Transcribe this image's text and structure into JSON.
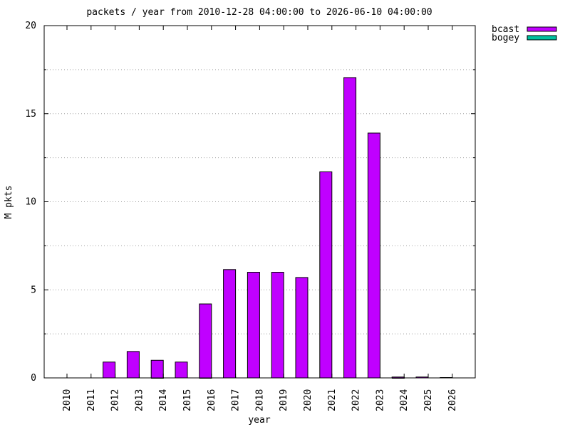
{
  "chart_data": {
    "type": "bar",
    "title": "packets / year   from 2010-12-28 04:00:00 to 2026-06-10 04:00:00",
    "xlabel": "year",
    "ylabel": "M pkts",
    "categories": [
      "2010",
      "2011",
      "2012",
      "2013",
      "2014",
      "2015",
      "2016",
      "2017",
      "2018",
      "2019",
      "2020",
      "2021",
      "2022",
      "2023",
      "2024",
      "2025",
      "2026"
    ],
    "ylim": [
      0,
      20
    ],
    "yticks": [
      0,
      5,
      10,
      15,
      20
    ],
    "grid": true,
    "legend_position": "top-right, outside plot",
    "series": [
      {
        "name": "bcast",
        "color": "#c000ff",
        "values": [
          0,
          0,
          0.9,
          1.5,
          1.0,
          0.9,
          4.2,
          6.15,
          6.0,
          6.0,
          5.7,
          11.7,
          17.05,
          13.9,
          0.05,
          0.05,
          0.02
        ]
      },
      {
        "name": "bogey",
        "color": "#00c0a0",
        "values": [
          0,
          0,
          0,
          0.02,
          0,
          0.02,
          0.05,
          0,
          0.05,
          0.05,
          0,
          0,
          0,
          0.02,
          0,
          0,
          0
        ]
      }
    ]
  }
}
